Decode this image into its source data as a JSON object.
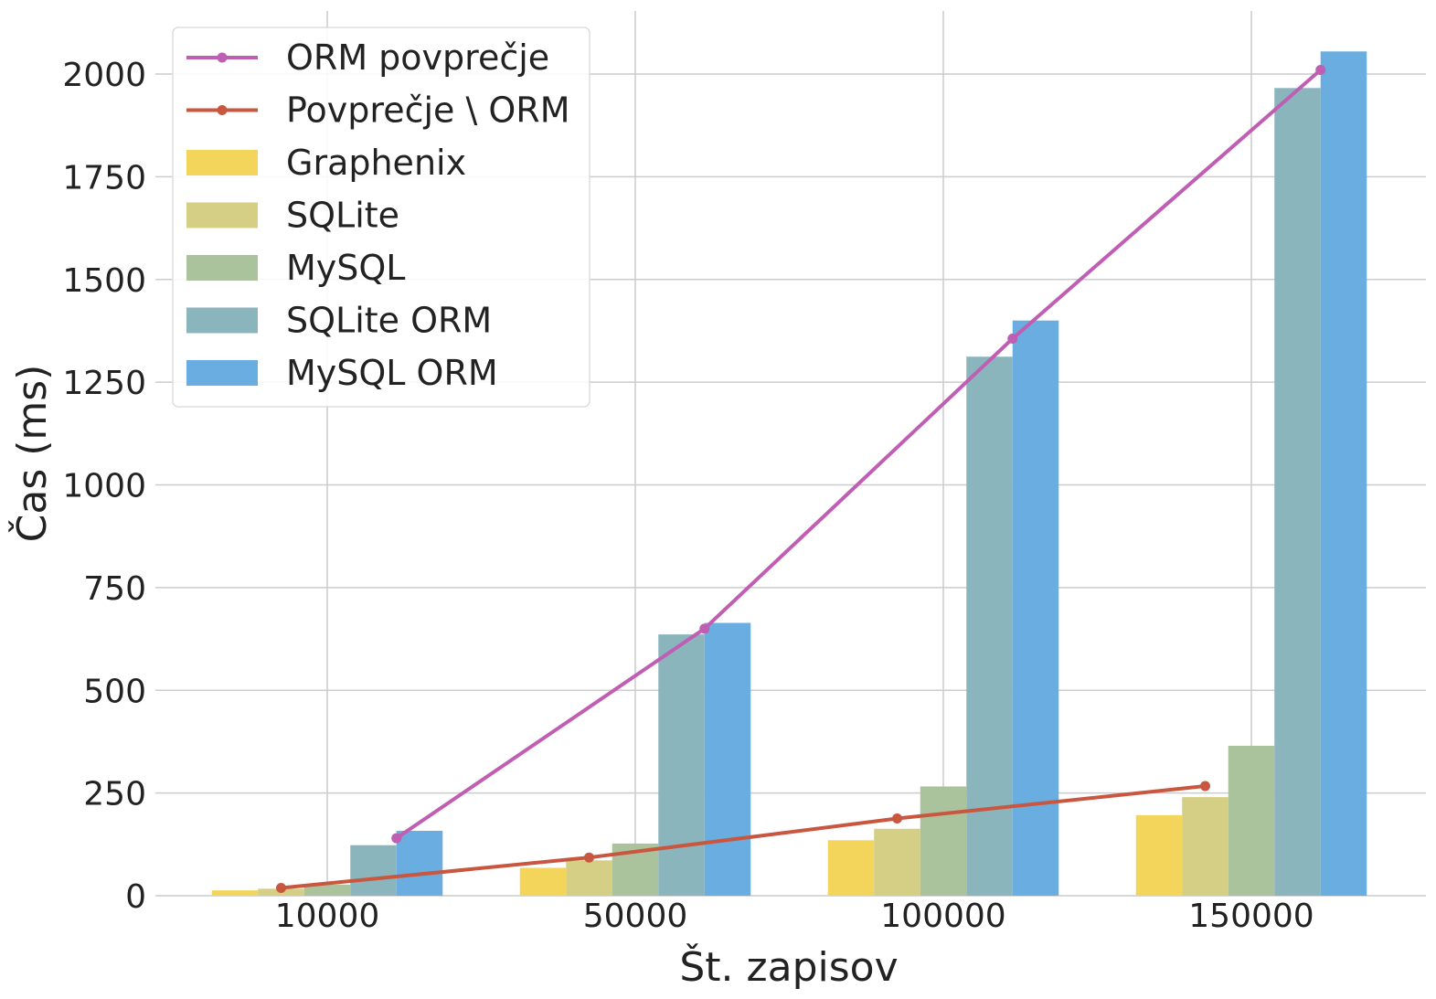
{
  "chart_data": {
    "type": "bar",
    "title": "",
    "xlabel": "Št. zapisov",
    "ylabel": "Čas (ms)",
    "categories": [
      "10000",
      "50000",
      "100000",
      "150000"
    ],
    "ylim": [
      0,
      2150
    ],
    "yticks": [
      "0",
      "250",
      "500",
      "750",
      "1000",
      "1250",
      "1500",
      "1750",
      "2000"
    ],
    "grid": true,
    "legend_position": "top-left",
    "series": [
      {
        "name": "Graphenix",
        "kind": "bar",
        "color": "#f3d55b",
        "values": [
          13,
          68,
          135,
          196
        ]
      },
      {
        "name": "SQLite",
        "kind": "bar",
        "color": "#d4cf84",
        "values": [
          17,
          86,
          163,
          240
        ]
      },
      {
        "name": "MySQL",
        "kind": "bar",
        "color": "#abc39c",
        "values": [
          27,
          127,
          266,
          365
        ]
      },
      {
        "name": "SQLite ORM",
        "kind": "bar",
        "color": "#8bb5bd",
        "values": [
          123,
          636,
          1312,
          1966
        ]
      },
      {
        "name": "MySQL ORM",
        "kind": "bar",
        "color": "#6aade0",
        "values": [
          158,
          664,
          1400,
          2055
        ]
      },
      {
        "name": "ORM povprečje",
        "kind": "line",
        "color": "#c05eb3",
        "values": [
          140,
          650,
          1356,
          2010
        ]
      },
      {
        "name": "Povprečje \\ ORM",
        "kind": "line",
        "color": "#c9573f",
        "values": [
          19,
          93,
          188,
          267
        ]
      }
    ]
  }
}
